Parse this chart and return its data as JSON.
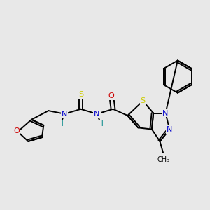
{
  "bg_color": "#e8e8e8",
  "atom_colors": {
    "C": "#000000",
    "N": "#0000cc",
    "O": "#cc0000",
    "S": "#cccc00",
    "H": "#008888"
  },
  "bond_color": "#000000",
  "figsize": [
    3.0,
    3.0
  ],
  "dpi": 100,
  "lw": 1.4
}
